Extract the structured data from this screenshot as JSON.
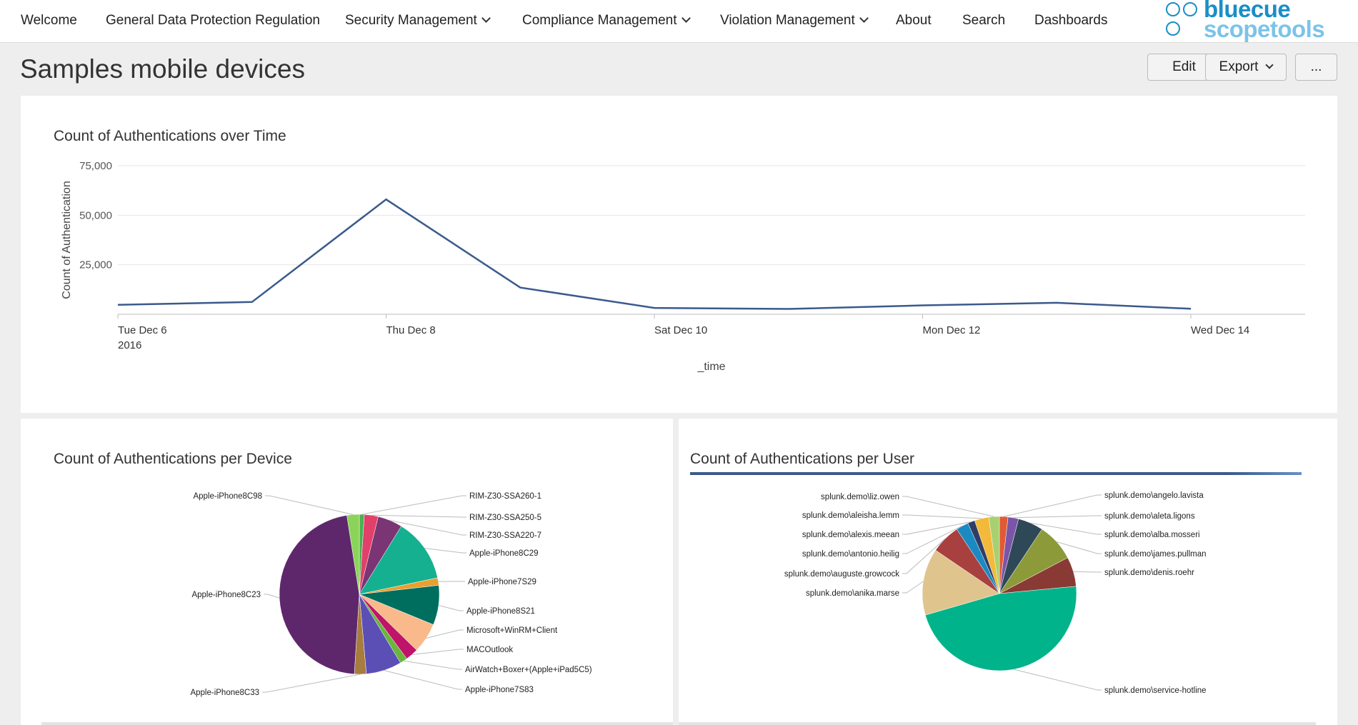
{
  "nav": {
    "items": [
      {
        "label": "Welcome"
      },
      {
        "label": "General Data Protection Regulation"
      },
      {
        "label": "Security Management"
      },
      {
        "label": "Compliance Management"
      },
      {
        "label": "Violation Management"
      },
      {
        "label": "About"
      },
      {
        "label": "Search"
      },
      {
        "label": "Dashboards"
      }
    ],
    "logo_line1": "bluecue",
    "logo_line2": "scopetools"
  },
  "header": {
    "title": "Samples mobile devices",
    "edit_label": "Edit",
    "export_label": "Export",
    "more_label": "..."
  },
  "colors": {
    "line": "#3a5a8c",
    "accent_bar": "#3a5a8c"
  },
  "panels": {
    "time_chart_title": "Count of Authentications over Time",
    "device_chart_title": "Count of Authentications per Device",
    "user_chart_title": "Count of Authentications per User"
  },
  "chart_data": [
    {
      "type": "line",
      "title": "Count of Authentications over Time",
      "xlabel": "_time",
      "ylabel": "Count of Authentication",
      "x": [
        "2016-12-06",
        "2016-12-07",
        "2016-12-08",
        "2016-12-09",
        "2016-12-10",
        "2016-12-11",
        "2016-12-12",
        "2016-12-13",
        "2016-12-14"
      ],
      "x_tick_labels": [
        {
          "line1": "Tue Dec 6",
          "line2": "2016"
        },
        {
          "line1": "Thu Dec 8",
          "line2": ""
        },
        {
          "line1": "Sat Dec 10",
          "line2": ""
        },
        {
          "line1": "Mon Dec 12",
          "line2": ""
        },
        {
          "line1": "Wed Dec 14",
          "line2": ""
        }
      ],
      "y_ticks": [
        "25,000",
        "50,000",
        "75,000"
      ],
      "ylim": [
        0,
        75000
      ],
      "values": [
        4800,
        6200,
        58000,
        13500,
        3200,
        2700,
        4500,
        5800,
        2800
      ],
      "grid": true,
      "color": "#3a5a8c"
    },
    {
      "type": "pie",
      "title": "Count of Authentications per Device",
      "slices": [
        {
          "label": "RIM-Z30-SSA260-1",
          "value": 1.0,
          "color": "#4caf50"
        },
        {
          "label": "RIM-Z30-SSA250-5",
          "value": 2.8,
          "color": "#e0406a"
        },
        {
          "label": "RIM-Z30-SSA220-7",
          "value": 5.0,
          "color": "#7b3574"
        },
        {
          "label": "Apple-iPhone8C29",
          "value": 12.9,
          "color": "#15b08f"
        },
        {
          "label": "Apple-iPhone7S29",
          "value": 1.5,
          "color": "#e8a030"
        },
        {
          "label": "Apple-iPhone8S21",
          "value": 8.0,
          "color": "#006e5e"
        },
        {
          "label": "Microsoft+WinRM+Client",
          "value": 6.1,
          "color": "#f9b98a"
        },
        {
          "label": "MACOutlook",
          "value": 2.6,
          "color": "#c0136a"
        },
        {
          "label": "AirWatch+Boxer+(Apple+iPad5C5)",
          "value": 1.5,
          "color": "#6ab53c"
        },
        {
          "label": "Apple-iPhone7S83",
          "value": 7.2,
          "color": "#5b4fb6"
        },
        {
          "label": "Apple-iPhone8C33",
          "value": 2.4,
          "color": "#a87c3f"
        },
        {
          "label": "Apple-iPhone8C23",
          "value": 46.5,
          "color": "#5e276c"
        },
        {
          "label": "Apple-iPhone8C98",
          "value": 2.5,
          "color": "#8bd45a"
        }
      ]
    },
    {
      "type": "pie",
      "title": "Count of Authentications per User",
      "slices": [
        {
          "label": "splunk.demo\\angelo.lavista",
          "value": 1.8,
          "color": "#e05a34"
        },
        {
          "label": "splunk.demo\\aleta.ligons",
          "value": 2.2,
          "color": "#7b55a8"
        },
        {
          "label": "splunk.demo\\alba.mosseri",
          "value": 5.3,
          "color": "#2f4858"
        },
        {
          "label": "splunk.demo\\james.pullman",
          "value": 8.0,
          "color": "#8d9a3a"
        },
        {
          "label": "splunk.demo\\denis.roehr",
          "value": 6.2,
          "color": "#8a3a34"
        },
        {
          "label": "splunk.demo\\service-hotline",
          "value": 47.0,
          "color": "#00b38a"
        },
        {
          "label": "splunk.demo\\anika.marse",
          "value": 14.0,
          "color": "#e0c48e"
        },
        {
          "label": "splunk.demo\\auguste.growcock",
          "value": 6.2,
          "color": "#a84040"
        },
        {
          "label": "splunk.demo\\antonio.heilig",
          "value": 2.6,
          "color": "#1b8ac3"
        },
        {
          "label": "splunk.demo\\alexis.meean",
          "value": 1.5,
          "color": "#2f3d66"
        },
        {
          "label": "splunk.demo\\aleisha.lemm",
          "value": 3.0,
          "color": "#f3b93a"
        },
        {
          "label": "splunk.demo\\liz.owen",
          "value": 2.2,
          "color": "#a8d070"
        }
      ]
    }
  ]
}
